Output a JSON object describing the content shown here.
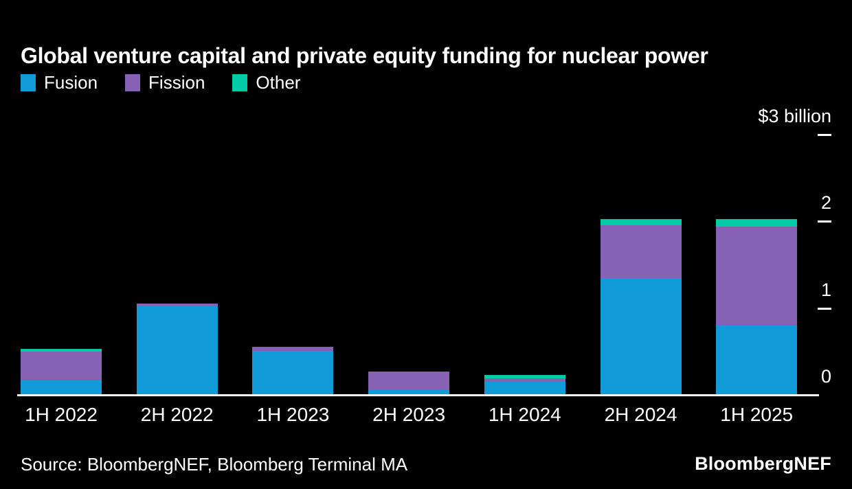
{
  "title": "Global venture capital and private equity funding for nuclear power",
  "legend": {
    "items": [
      {
        "label": "Fusion",
        "color": "#119BD8"
      },
      {
        "label": "Fission",
        "color": "#8761B3"
      },
      {
        "label": "Other",
        "color": "#00CBA7"
      }
    ]
  },
  "y_axis": {
    "unit_label": "$3 billion",
    "ticks": [
      {
        "label": "$3 billion",
        "value": 3,
        "dash": true
      },
      {
        "label": "2",
        "value": 2,
        "dash": true
      },
      {
        "label": "1",
        "value": 1,
        "dash": true
      },
      {
        "label": "0",
        "value": 0,
        "dash": false
      }
    ]
  },
  "footer": {
    "source": "Source: BloombergNEF, Bloomberg Terminal MA",
    "logo": "BloombergNEF"
  },
  "colors": {
    "background": "#000000",
    "text": "#FFFFFF",
    "axis": "#FFFFFF",
    "fusion": "#119BD8",
    "fission": "#8761B3",
    "other": "#00CBA7"
  },
  "chart_data": {
    "type": "bar",
    "stacked": true,
    "title": "Global venture capital and private equity funding for nuclear power",
    "ylabel": "$ billion",
    "ylim": [
      0,
      3
    ],
    "yticks": [
      0,
      1,
      2,
      3
    ],
    "grid": false,
    "legend_position": "top-left",
    "categories": [
      "1H 2022",
      "2H 2022",
      "1H 2023",
      "2H 2023",
      "1H 2024",
      "2H 2024",
      "1H 2025"
    ],
    "series": [
      {
        "name": "Fusion",
        "color": "#119BD8",
        "values": [
          0.16,
          1.02,
          0.5,
          0.05,
          0.14,
          1.34,
          0.8
        ]
      },
      {
        "name": "Fission",
        "color": "#8761B3",
        "values": [
          0.33,
          0.02,
          0.05,
          0.21,
          0.04,
          0.61,
          1.13
        ]
      },
      {
        "name": "Other",
        "color": "#00CBA7",
        "values": [
          0.03,
          0.0,
          0.0,
          0.0,
          0.04,
          0.07,
          0.09
        ]
      }
    ]
  }
}
